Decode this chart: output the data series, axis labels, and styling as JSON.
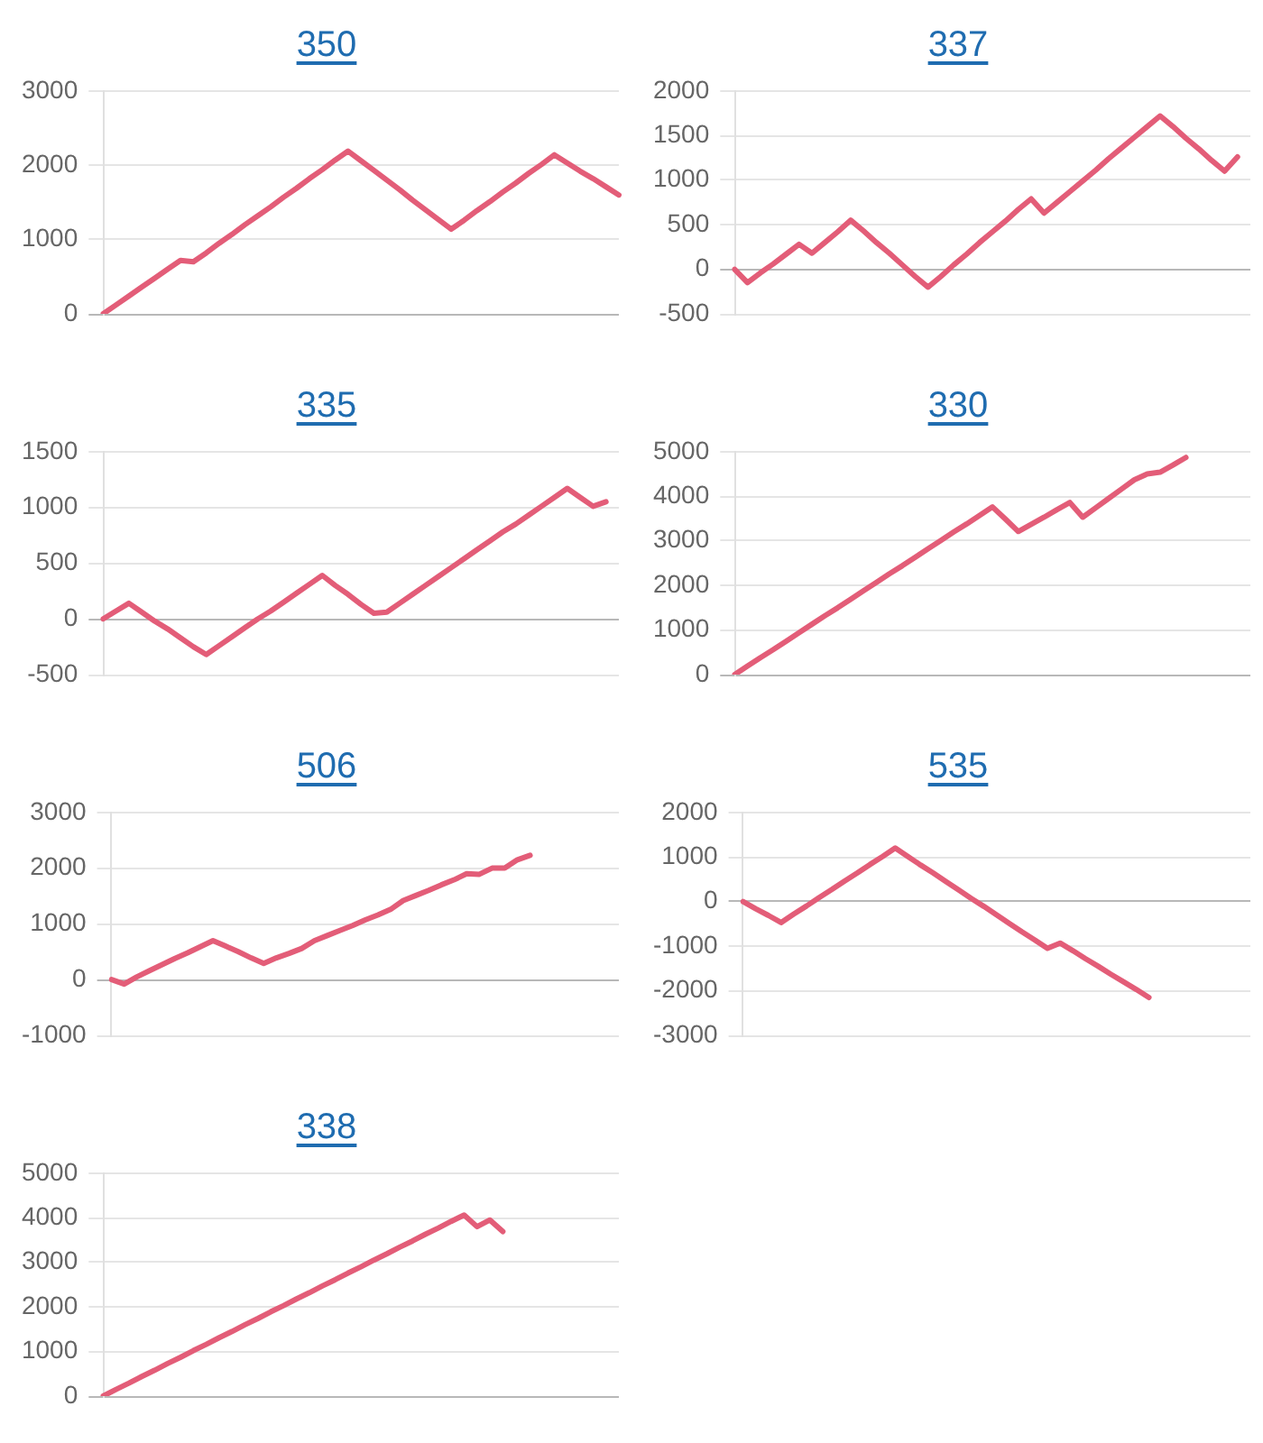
{
  "chart_data": [
    {
      "type": "line",
      "title": "350",
      "color": "#e35d78",
      "grid": "y",
      "marker": "none",
      "categories": [
        null,
        null,
        null,
        null,
        null,
        null,
        null,
        null,
        null,
        null,
        null,
        null,
        null,
        null,
        null,
        null,
        null,
        null,
        null,
        null,
        null,
        null,
        null,
        null,
        null,
        null,
        null,
        null,
        null,
        null,
        null,
        null,
        null,
        null,
        null,
        null,
        null,
        null,
        null,
        null,
        null
      ],
      "values": [
        0,
        120,
        240,
        360,
        480,
        600,
        720,
        700,
        820,
        950,
        1070,
        1200,
        1320,
        1440,
        1570,
        1690,
        1820,
        1940,
        2070,
        2190,
        2060,
        1930,
        1800,
        1670,
        1530,
        1400,
        1270,
        1140,
        1260,
        1390,
        1510,
        1640,
        1760,
        1890,
        2010,
        2140,
        2030,
        1920,
        1820,
        1710,
        1600
      ],
      "ylim": [
        0,
        3000
      ],
      "yticks": [
        0,
        1000,
        2000,
        3000
      ]
    },
    {
      "type": "line",
      "title": "337",
      "color": "#e35d78",
      "grid": "y",
      "marker": "none",
      "categories": [
        null,
        null,
        null,
        null,
        null,
        null,
        null,
        null,
        null,
        null,
        null,
        null,
        null,
        null,
        null,
        null,
        null,
        null,
        null,
        null,
        null,
        null,
        null,
        null,
        null,
        null,
        null,
        null,
        null,
        null,
        null,
        null,
        null,
        null,
        null,
        null,
        null,
        null,
        null,
        null,
        null
      ],
      "values": [
        0,
        -150,
        -40,
        60,
        170,
        280,
        180,
        300,
        420,
        550,
        430,
        300,
        180,
        50,
        -80,
        -200,
        -80,
        50,
        170,
        300,
        420,
        540,
        670,
        790,
        630,
        750,
        870,
        990,
        1110,
        1240,
        1360,
        1480,
        1600,
        1720,
        1600,
        1470,
        1350,
        1220,
        1100,
        1260,
        null
      ],
      "ylim": [
        -500,
        2000
      ],
      "yticks": [
        -500,
        0,
        500,
        1000,
        1500,
        2000
      ]
    },
    {
      "type": "line",
      "title": "335",
      "color": "#e35d78",
      "grid": "y",
      "marker": "none",
      "categories": [
        null,
        null,
        null,
        null,
        null,
        null,
        null,
        null,
        null,
        null,
        null,
        null,
        null,
        null,
        null,
        null,
        null,
        null,
        null,
        null,
        null,
        null,
        null,
        null,
        null,
        null,
        null,
        null,
        null,
        null,
        null,
        null,
        null,
        null,
        null,
        null,
        null,
        null,
        null,
        null,
        null
      ],
      "values": [
        0,
        70,
        140,
        60,
        -20,
        -90,
        -170,
        -250,
        -320,
        -240,
        -160,
        -80,
        0,
        70,
        150,
        230,
        310,
        390,
        300,
        220,
        130,
        50,
        60,
        140,
        220,
        300,
        380,
        460,
        540,
        620,
        700,
        780,
        850,
        930,
        1010,
        1090,
        1170,
        1090,
        1010,
        1050,
        null
      ],
      "ylim": [
        -500,
        1500
      ],
      "yticks": [
        -500,
        0,
        500,
        1000,
        1500
      ]
    },
    {
      "type": "line",
      "title": "330",
      "color": "#e35d78",
      "grid": "y",
      "marker": "none",
      "categories": [
        null,
        null,
        null,
        null,
        null,
        null,
        null,
        null,
        null,
        null,
        null,
        null,
        null,
        null,
        null,
        null,
        null,
        null,
        null,
        null,
        null,
        null,
        null,
        null,
        null,
        null,
        null,
        null,
        null,
        null,
        null,
        null,
        null,
        null,
        null,
        null,
        null,
        null,
        null,
        null,
        null
      ],
      "values": [
        0,
        190,
        380,
        560,
        750,
        940,
        1130,
        1320,
        1500,
        1690,
        1880,
        2070,
        2260,
        2440,
        2630,
        2820,
        3010,
        3200,
        3380,
        3570,
        3760,
        3490,
        3210,
        3370,
        3530,
        3700,
        3860,
        3530,
        3740,
        3950,
        4160,
        4370,
        4500,
        4540,
        4700,
        4870,
        null,
        null,
        null,
        null,
        null
      ],
      "ylim": [
        0,
        5000
      ],
      "yticks": [
        0,
        1000,
        2000,
        3000,
        4000,
        5000
      ]
    },
    {
      "type": "line",
      "title": "506",
      "color": "#e35d78",
      "grid": "y",
      "marker": "none",
      "categories": [
        null,
        null,
        null,
        null,
        null,
        null,
        null,
        null,
        null,
        null,
        null,
        null,
        null,
        null,
        null,
        null,
        null,
        null,
        null,
        null,
        null,
        null,
        null,
        null,
        null,
        null,
        null,
        null,
        null,
        null,
        null,
        null,
        null,
        null,
        null,
        null,
        null,
        null,
        null,
        null,
        null
      ],
      "values": [
        0,
        -80,
        50,
        160,
        270,
        380,
        480,
        590,
        700,
        600,
        500,
        390,
        290,
        390,
        470,
        560,
        700,
        790,
        880,
        970,
        1070,
        1160,
        1260,
        1420,
        1510,
        1600,
        1700,
        1790,
        1900,
        1890,
        2000,
        2000,
        2150,
        2230,
        null,
        null,
        null,
        null,
        null,
        null,
        null
      ],
      "ylim": [
        -1000,
        3000
      ],
      "yticks": [
        -1000,
        0,
        1000,
        2000,
        3000
      ]
    },
    {
      "type": "line",
      "title": "535",
      "color": "#e35d78",
      "grid": "y",
      "marker": "none",
      "categories": [
        null,
        null,
        null,
        null,
        null,
        null,
        null,
        null,
        null,
        null,
        null,
        null,
        null,
        null,
        null,
        null,
        null,
        null,
        null,
        null,
        null,
        null,
        null,
        null,
        null,
        null,
        null,
        null,
        null,
        null,
        null,
        null,
        null,
        null,
        null,
        null,
        null,
        null,
        null,
        null,
        null
      ],
      "values": [
        0,
        -160,
        -310,
        -470,
        -280,
        -100,
        90,
        270,
        460,
        640,
        830,
        1010,
        1200,
        1010,
        820,
        640,
        450,
        260,
        70,
        -110,
        -300,
        -490,
        -680,
        -860,
        -1050,
        -930,
        -1100,
        -1280,
        -1450,
        -1630,
        -1800,
        -1970,
        -2150,
        null,
        null,
        null,
        null,
        null,
        null,
        null,
        null
      ],
      "ylim": [
        -3000,
        2000
      ],
      "yticks": [
        -3000,
        -2000,
        -1000,
        0,
        1000,
        2000
      ]
    },
    {
      "type": "line",
      "title": "338",
      "color": "#e35d78",
      "grid": "y",
      "marker": "none",
      "categories": [
        null,
        null,
        null,
        null,
        null,
        null,
        null,
        null,
        null,
        null,
        null,
        null,
        null,
        null,
        null,
        null,
        null,
        null,
        null,
        null,
        null,
        null,
        null,
        null,
        null,
        null,
        null,
        null,
        null,
        null,
        null,
        null,
        null,
        null,
        null,
        null,
        null,
        null,
        null,
        null,
        null
      ],
      "values": [
        0,
        150,
        290,
        440,
        580,
        730,
        870,
        1020,
        1160,
        1310,
        1450,
        1600,
        1740,
        1890,
        2030,
        2180,
        2320,
        2470,
        2610,
        2760,
        2900,
        3050,
        3190,
        3340,
        3480,
        3630,
        3770,
        3920,
        4060,
        3800,
        3950,
        3690,
        null,
        null,
        null,
        null,
        null,
        null,
        null,
        null,
        null
      ],
      "ylim": [
        0,
        5000
      ],
      "yticks": [
        0,
        1000,
        2000,
        3000,
        4000,
        5000
      ]
    }
  ]
}
